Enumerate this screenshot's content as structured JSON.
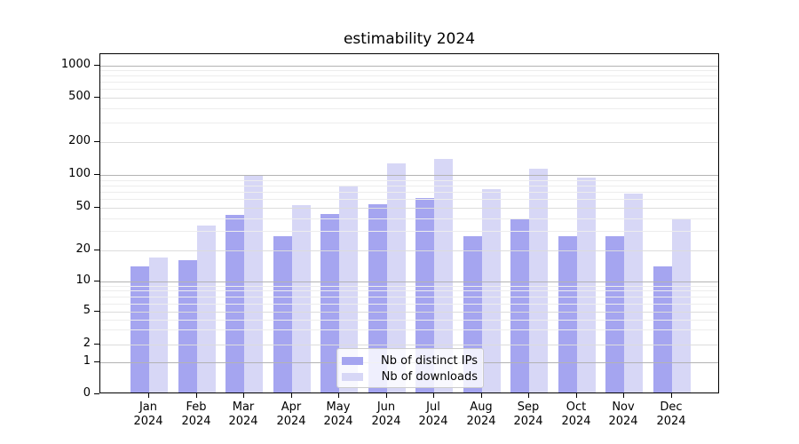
{
  "title": "estimability 2024",
  "chart_data": {
    "type": "bar",
    "title": "estimability 2024",
    "categories": [
      "Jan",
      "Feb",
      "Mar",
      "Apr",
      "May",
      "Jun",
      "Jul",
      "Aug",
      "Sep",
      "Oct",
      "Nov",
      "Dec"
    ],
    "x_tick_year": "2024",
    "series": [
      {
        "name": "Nb of distinct IPs",
        "color": "#a5a5f0",
        "values": [
          14,
          16,
          43,
          27,
          44,
          54,
          61,
          27,
          39,
          27,
          27,
          14
        ]
      },
      {
        "name": "Nb of downloads",
        "color": "#d7d7f6",
        "values": [
          17,
          34,
          100,
          53,
          78,
          128,
          140,
          74,
          114,
          95,
          67,
          40
        ]
      }
    ],
    "y_axis": {
      "ticks": [
        0,
        1,
        2,
        5,
        10,
        20,
        50,
        100,
        200,
        500,
        1000
      ],
      "scale": "symlog",
      "range": [
        0,
        1000
      ]
    },
    "grid": "horizontal major and minor lines drawn over bars",
    "minor_grid_values": [
      3,
      4,
      6,
      7,
      8,
      9,
      30,
      40,
      60,
      70,
      80,
      90,
      300,
      400,
      600,
      700,
      800,
      900
    ],
    "legend": {
      "position": "lower center",
      "entries": [
        "Nb of distinct IPs",
        "Nb of downloads"
      ]
    }
  },
  "colors": {
    "bar_ips": "#a5a5f0",
    "bar_downloads": "#d7d7f6",
    "grid_major": "#b3b3b3",
    "grid_mid": "#dcdcdc",
    "grid_minor": "#ededed",
    "spine": "#000000",
    "legend_border": "#cccccc",
    "background": "#ffffff"
  }
}
